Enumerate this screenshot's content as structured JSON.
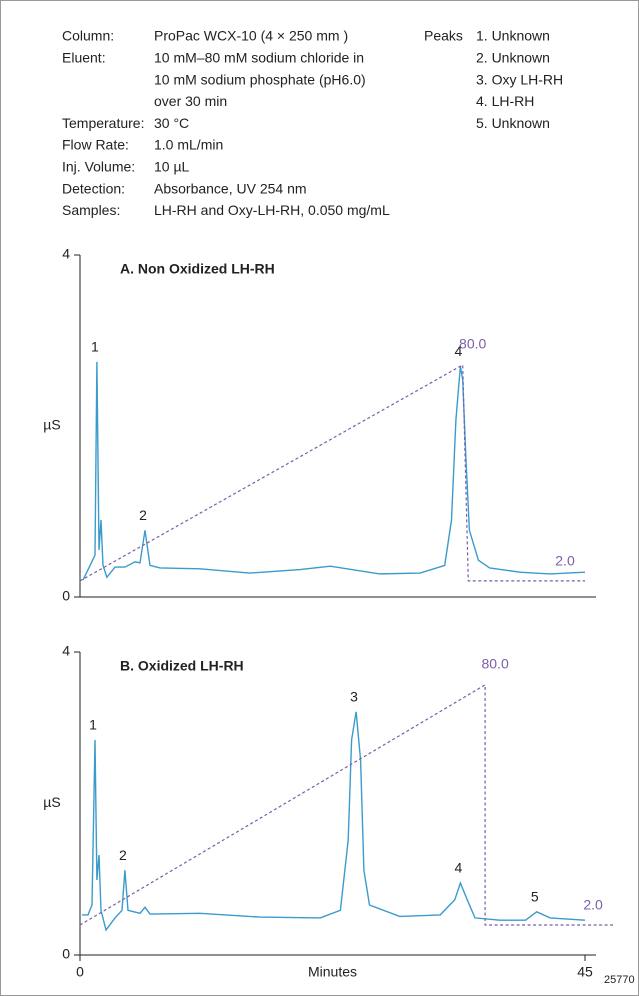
{
  "conditions": [
    {
      "label": "Column:",
      "lines": [
        "ProPac WCX-10 (4 × 250 mm )"
      ]
    },
    {
      "label": "Eluent:",
      "lines": [
        "10 mM–80 mM sodium chloride in",
        "10 mM sodium phosphate (pH6.0)",
        "over 30 min"
      ]
    },
    {
      "label": "Temperature:",
      "lines": [
        "30 °C"
      ]
    },
    {
      "label": "Flow Rate:",
      "lines": [
        "1.0 mL/min"
      ]
    },
    {
      "label": "Inj. Volume:",
      "lines": [
        "10 µL"
      ]
    },
    {
      "label": "Detection:",
      "lines": [
        "Absorbance, UV 254 nm"
      ]
    },
    {
      "label": "Samples:",
      "lines": [
        "LH-RH and Oxy-LH-RH, 0.050 mg/mL"
      ]
    }
  ],
  "peaks": {
    "label": "Peaks",
    "items": [
      "1.  Unknown",
      "2.  Unknown",
      "3.  Oxy LH-RH",
      "4.  LH-RH",
      "5.  Unknown"
    ]
  },
  "figure_id": "25770",
  "chart_data": [
    {
      "type": "line",
      "title": "A. Non Oxidized LH-RH",
      "y_label": "µS",
      "xlim": [
        0,
        45
      ],
      "ylim": [
        0,
        4
      ],
      "yticks": [
        0,
        4
      ],
      "y2lim": [
        -3.8,
        119.7
      ],
      "series": [
        {
          "color": "#3a9bcc",
          "x": [
            0.27,
            0.9,
            1.34,
            1.51,
            1.69,
            1.87,
            2.05,
            2.4,
            3.12,
            4.0,
            4.9,
            5.35,
            5.79,
            6.24,
            7.13,
            10.7,
            15.1,
            19.6,
            22.3,
            26.7,
            30.3,
            32.5,
            33.1,
            33.5,
            33.9,
            34.1,
            34.4,
            34.7,
            35.5,
            36.5,
            39.2,
            41.9,
            45
          ],
          "values": [
            0.2,
            0.37,
            0.49,
            2.75,
            0.55,
            0.9,
            0.37,
            0.23,
            0.35,
            0.35,
            0.41,
            0.4,
            0.78,
            0.37,
            0.34,
            0.33,
            0.28,
            0.32,
            0.36,
            0.27,
            0.28,
            0.37,
            0.9,
            2.07,
            2.7,
            2.54,
            1.6,
            0.78,
            0.43,
            0.34,
            0.29,
            0.27,
            0.29
          ]
        },
        {
          "color": "#7b5ea8",
          "axis": "y2",
          "dashed": true,
          "x": [
            0,
            34.1,
            34.6,
            45
          ],
          "values": [
            2.0,
            80.0,
            2.0,
            2.0
          ],
          "value_labels": [
            null,
            "80.0",
            null,
            "2.0"
          ]
        }
      ],
      "peak_labels": [
        {
          "text": "1",
          "x": 1.51
        },
        {
          "text": "2",
          "x": 5.79
        },
        {
          "text": "4",
          "x": 33.9
        }
      ]
    },
    {
      "type": "line",
      "title": "B. Oxidized LH-RH",
      "y_label": "µS",
      "x_label": "Minutes",
      "xlim": [
        0,
        45
      ],
      "xticks": [
        0,
        45
      ],
      "ylim": [
        0,
        4
      ],
      "yticks": [
        0,
        4
      ],
      "y2lim": [
        -7.75,
        90.7
      ],
      "series": [
        {
          "color": "#3a9bcc",
          "x": [
            0.18,
            0.71,
            1.07,
            1.34,
            1.51,
            1.69,
            1.87,
            2.32,
            3.12,
            3.74,
            4.0,
            4.28,
            5.35,
            5.79,
            6.24,
            10.7,
            16.0,
            21.4,
            23.2,
            23.9,
            24.2,
            24.6,
            25.0,
            25.3,
            25.8,
            28.5,
            32.1,
            33.4,
            33.9,
            34.5,
            35.2,
            37.4,
            39.7,
            40.7,
            41.9,
            45
          ],
          "values": [
            0.53,
            0.53,
            0.66,
            2.84,
            0.99,
            1.32,
            0.59,
            0.33,
            0.49,
            0.59,
            1.12,
            0.59,
            0.55,
            0.63,
            0.54,
            0.55,
            0.5,
            0.49,
            0.59,
            1.52,
            2.84,
            3.21,
            2.57,
            1.12,
            0.66,
            0.51,
            0.53,
            0.73,
            0.95,
            0.73,
            0.49,
            0.46,
            0.46,
            0.57,
            0.49,
            0.46
          ]
        },
        {
          "color": "#7b5ea8",
          "axis": "y2",
          "dashed": true,
          "x": [
            0,
            36.1,
            36.1,
            47.5
          ],
          "values": [
            2.0,
            80.0,
            2.0,
            2.0
          ],
          "value_labels": [
            null,
            "80.0",
            null,
            "2.0"
          ]
        }
      ],
      "peak_labels": [
        {
          "text": "1",
          "x": 1.34
        },
        {
          "text": "2",
          "x": 4.0
        },
        {
          "text": "3",
          "x": 24.6
        },
        {
          "text": "4",
          "x": 33.9
        },
        {
          "text": "5",
          "x": 40.7
        }
      ]
    }
  ]
}
